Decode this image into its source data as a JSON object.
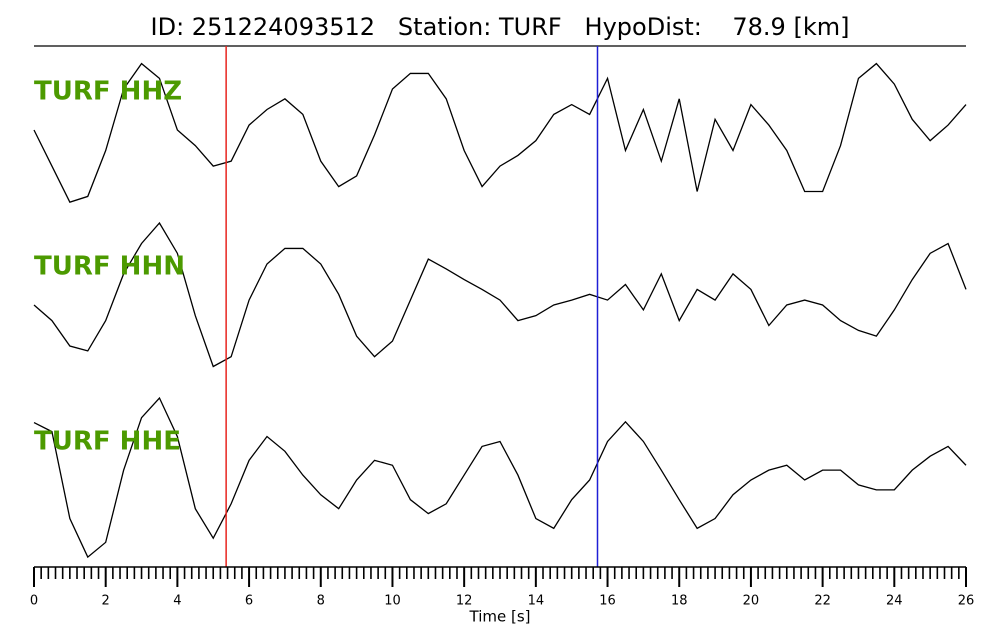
{
  "chart_data": {
    "type": "line",
    "title": "ID: 251224093512   Station: TURF   HypoDist:    78.9 [km]",
    "xlabel": "Time [s]",
    "xlim": [
      0,
      26
    ],
    "xticks": [
      0,
      2,
      4,
      6,
      8,
      10,
      12,
      14,
      16,
      18,
      20,
      22,
      24,
      26
    ],
    "xminorticks": [
      0.2,
      0.4,
      0.6,
      0.8,
      1,
      1.2,
      1.4,
      1.6,
      1.8,
      2.2,
      2.4,
      2.6,
      2.8,
      3,
      3.2,
      3.4,
      3.6,
      3.8,
      4.2,
      4.4,
      4.6,
      4.8,
      5,
      5.2,
      5.4,
      5.6,
      5.8,
      6.2,
      6.4,
      6.6,
      6.8,
      7,
      7.2,
      7.4,
      7.6,
      7.8,
      8.2,
      8.4,
      8.6,
      8.8,
      9,
      9.2,
      9.4,
      9.6,
      9.8,
      10.2,
      10.4,
      10.6,
      10.8,
      11,
      11.2,
      11.4,
      11.6,
      11.8,
      12.2,
      12.4,
      12.6,
      12.8,
      13,
      13.2,
      13.4,
      13.6,
      13.8,
      14.2,
      14.4,
      14.6,
      14.8,
      15,
      15.2,
      15.4,
      15.6,
      15.8,
      16.2,
      16.4,
      16.6,
      16.8,
      17,
      17.2,
      17.4,
      17.6,
      17.8,
      18.2,
      18.4,
      18.6,
      18.8,
      19,
      19.2,
      19.4,
      19.6,
      19.8,
      20.2,
      20.4,
      20.6,
      20.8,
      21,
      21.2,
      21.4,
      21.6,
      21.8,
      22.2,
      22.4,
      22.6,
      22.8,
      23,
      23.2,
      23.4,
      23.6,
      23.8,
      24.2,
      24.4,
      24.6,
      24.8,
      25,
      25.2,
      25.4,
      25.6,
      25.8
    ],
    "ylim": [
      -1,
      1
    ],
    "label_color": "#4c9a00",
    "x": [
      0,
      0.5,
      1,
      1.5,
      2,
      2.5,
      3,
      3.5,
      4,
      4.5,
      5,
      5.5,
      6,
      6.5,
      7,
      7.5,
      8,
      8.5,
      9,
      9.5,
      10,
      10.5,
      11,
      11.5,
      12,
      12.5,
      13,
      13.5,
      14,
      14.5,
      15,
      15.5,
      16,
      16.5,
      17,
      17.5,
      18,
      18.5,
      19,
      19.5,
      20,
      20.5,
      21,
      21.5,
      22,
      22.5,
      23,
      23.5,
      24,
      24.5,
      25,
      25.5,
      26
    ],
    "series": [
      {
        "name": "TURF HHZ",
        "color": "#000000",
        "values": [
          0,
          -0.44,
          -0.88,
          -0.81,
          -0.25,
          0.5,
          0.81,
          0.63,
          0,
          -0.19,
          -0.44,
          -0.38,
          0.06,
          0.25,
          0.38,
          0.19,
          -0.38,
          -0.69,
          -0.56,
          -0.06,
          0.5,
          0.69,
          0.69,
          0.38,
          -0.25,
          -0.69,
          -0.44,
          -0.31,
          -0.13,
          0.19,
          0.31,
          0.19,
          0.63,
          -0.25,
          0.25,
          -0.38,
          0.38,
          -0.75,
          0.13,
          -0.25,
          0.31,
          0.06,
          -0.25,
          -0.75,
          -0.75,
          -0.19,
          0.63,
          0.81,
          0.56,
          0.13,
          -0.13,
          0.06,
          0.31
        ]
      },
      {
        "name": "TURF HHN",
        "color": "#000000",
        "values": [
          0,
          -0.19,
          -0.5,
          -0.56,
          -0.19,
          0.38,
          0.75,
          1.0,
          0.63,
          -0.13,
          -0.75,
          -0.63,
          0.06,
          0.5,
          0.69,
          0.69,
          0.5,
          0.13,
          -0.38,
          -0.63,
          -0.44,
          0.06,
          0.56,
          0.44,
          0.31,
          0.19,
          0.06,
          -0.19,
          -0.13,
          0,
          0.06,
          0.13,
          0.06,
          0.25,
          -0.06,
          0.38,
          -0.19,
          0.19,
          0.06,
          0.38,
          0.19,
          -0.25,
          0,
          0.06,
          0,
          -0.19,
          -0.31,
          -0.38,
          -0.06,
          0.31,
          0.63,
          0.75,
          0.19
        ]
      },
      {
        "name": "TURF HHE",
        "color": "#000000",
        "values": [
          0.7,
          0.59,
          -0.47,
          -0.94,
          -0.76,
          0.12,
          0.76,
          1.0,
          0.53,
          -0.35,
          -0.71,
          -0.29,
          0.24,
          0.53,
          0.35,
          0.06,
          -0.18,
          -0.35,
          0,
          0.24,
          0.18,
          -0.24,
          -0.41,
          -0.29,
          0.06,
          0.41,
          0.47,
          0.06,
          -0.47,
          -0.59,
          -0.24,
          0,
          0.47,
          0.71,
          0.47,
          0.12,
          -0.24,
          -0.59,
          -0.47,
          -0.18,
          0,
          0.12,
          0.18,
          0,
          0.12,
          0.12,
          -0.06,
          -0.12,
          -0.12,
          0.12,
          0.29,
          0.41,
          0.18
        ]
      }
    ],
    "vlines": [
      {
        "x": 5.36,
        "color": "#e8251f"
      },
      {
        "x": 15.72,
        "color": "#1f1fd6"
      }
    ]
  }
}
